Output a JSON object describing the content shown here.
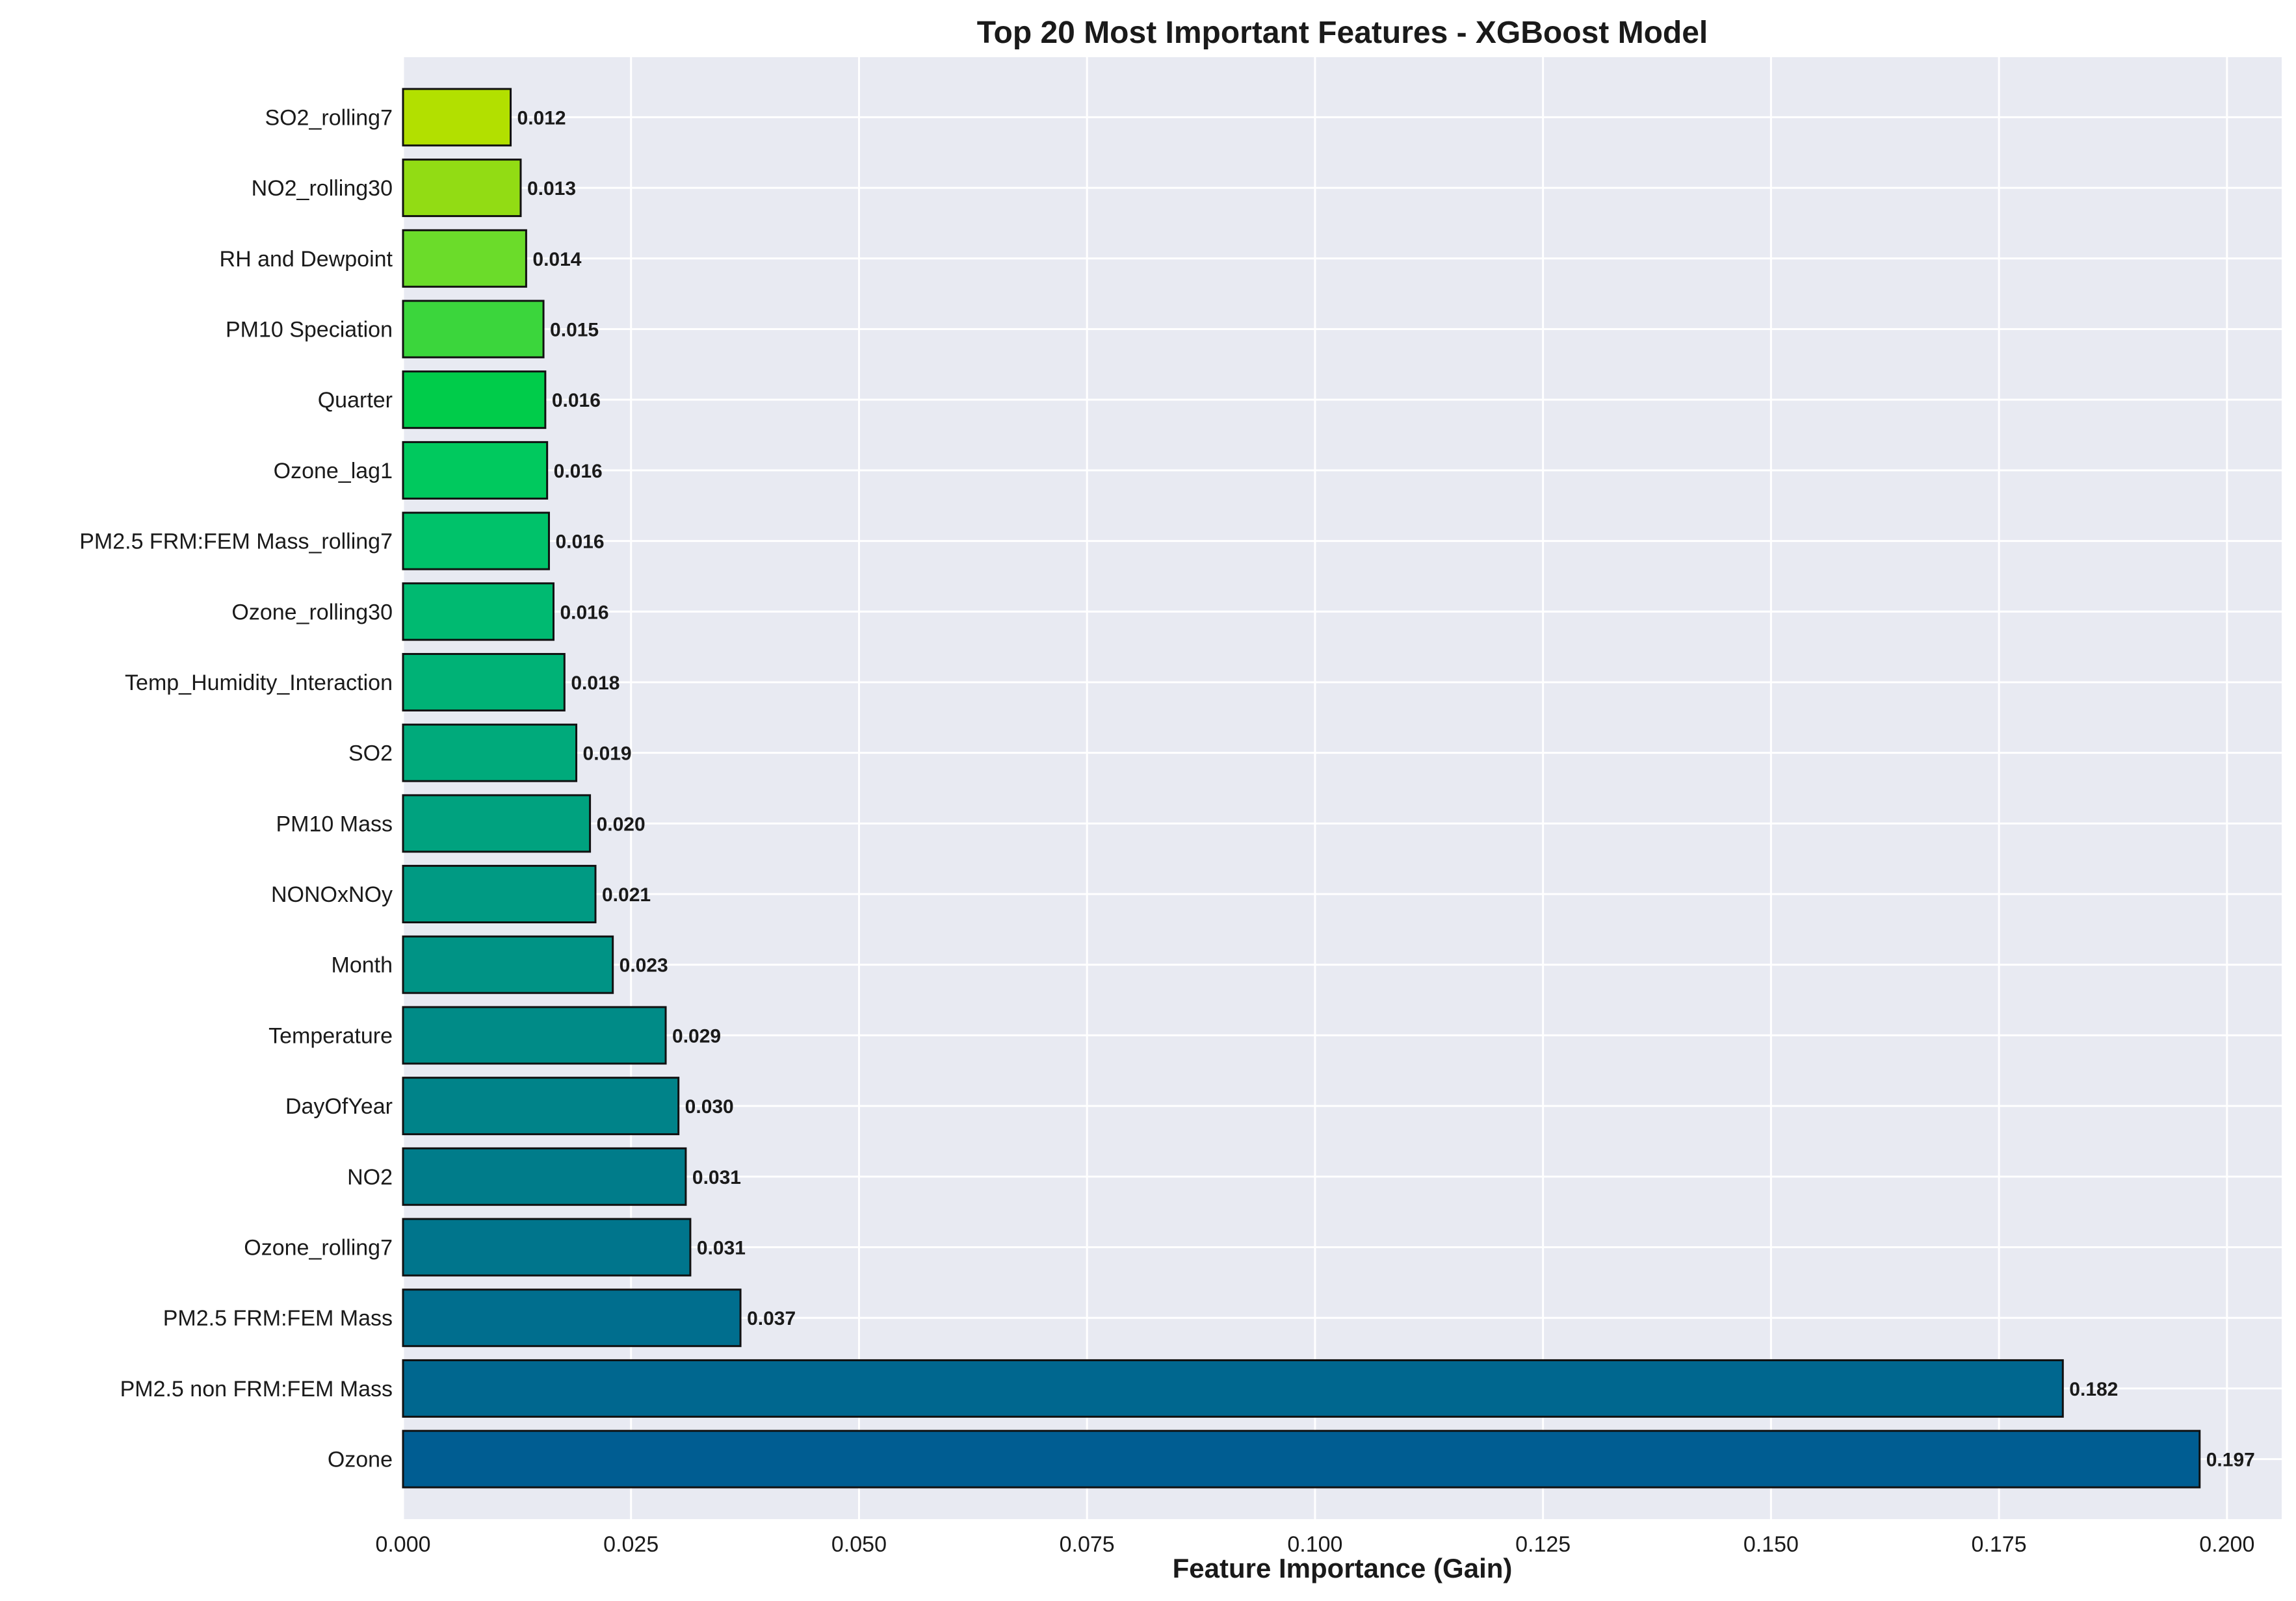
{
  "chart_data": {
    "type": "bar",
    "orientation": "horizontal",
    "title": "Top 20 Most Important Features - XGBoost Model",
    "xlabel": "Feature Importance (Gain)",
    "ylabel": "",
    "xlim": [
      0,
      0.206
    ],
    "xticks": [
      "0.000",
      "0.025",
      "0.050",
      "0.075",
      "0.100",
      "0.125",
      "0.150",
      "0.175",
      "0.200"
    ],
    "grid": true,
    "background": "#e8eaf2",
    "categories": [
      "Ozone",
      "PM2.5 non FRM:FEM Mass",
      "PM2.5 FRM:FEM Mass",
      "Ozone_rolling7",
      "NO2",
      "DayOfYear",
      "Temperature",
      "Month",
      "NONOxNOy",
      "PM10 Mass",
      "SO2",
      "Temp_Humidity_Interaction",
      "Ozone_rolling30",
      "PM2.5 FRM:FEM Mass_rolling7",
      "Ozone_lag1",
      "Quarter",
      "PM10 Speciation",
      "RH and Dewpoint",
      "NO2_rolling30",
      "SO2_rolling7"
    ],
    "values": [
      0.197,
      0.182,
      0.037,
      0.0315,
      0.031,
      0.0302,
      0.0288,
      0.023,
      0.0211,
      0.0205,
      0.019,
      0.0177,
      0.0165,
      0.016,
      0.0158,
      0.0156,
      0.0154,
      0.0135,
      0.0129,
      0.0118
    ],
    "value_labels": [
      "0.197",
      "0.182",
      "0.037",
      "0.031",
      "0.031",
      "0.030",
      "0.029",
      "0.023",
      "0.021",
      "0.020",
      "0.019",
      "0.018",
      "0.016",
      "0.016",
      "0.016",
      "0.016",
      "0.015",
      "0.014",
      "0.013",
      "0.012"
    ],
    "colors": [
      "#005d92",
      "#00678f",
      "#006e8e",
      "#00758c",
      "#007c8a",
      "#008389",
      "#008b87",
      "#009385",
      "#009a83",
      "#00a27f",
      "#00aa7b",
      "#00b276",
      "#00ba71",
      "#00c26a",
      "#00c95e",
      "#00cc4a",
      "#3bd63c",
      "#6bdc2a",
      "#92dc14",
      "#b2e000"
    ]
  }
}
